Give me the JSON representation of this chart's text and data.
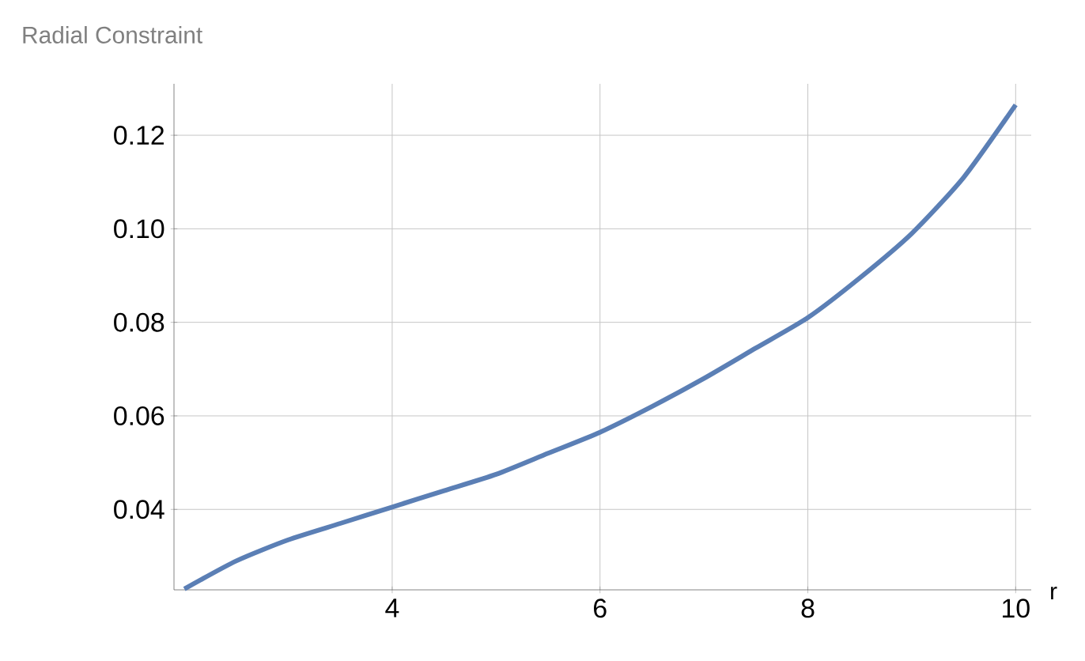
{
  "chart_data": {
    "type": "line",
    "xlabel": "r",
    "ylabel": "Radial Constraint",
    "x": [
      2,
      2.5,
      3,
      3.5,
      4,
      4.5,
      5,
      5.5,
      6,
      6.5,
      7,
      7.5,
      8,
      8.5,
      9,
      9.5,
      10
    ],
    "series": [
      {
        "color": "#5b7fb5",
        "values": [
          0.023,
          0.029,
          0.0335,
          0.037,
          0.0405,
          0.044,
          0.0475,
          0.052,
          0.0565,
          0.062,
          0.068,
          0.0745,
          0.081,
          0.0895,
          0.099,
          0.111,
          0.1265
        ]
      }
    ],
    "xlim": [
      1.9,
      10.15
    ],
    "ylim": [
      0.0228,
      0.131
    ],
    "xticks": [
      4,
      6,
      8,
      10
    ],
    "yticks": [
      0.04,
      0.06,
      0.08,
      {
        "value": 0.1,
        "label": "0.10"
      },
      0.12
    ],
    "grid": true,
    "marker": "none",
    "line_style": "solid"
  }
}
